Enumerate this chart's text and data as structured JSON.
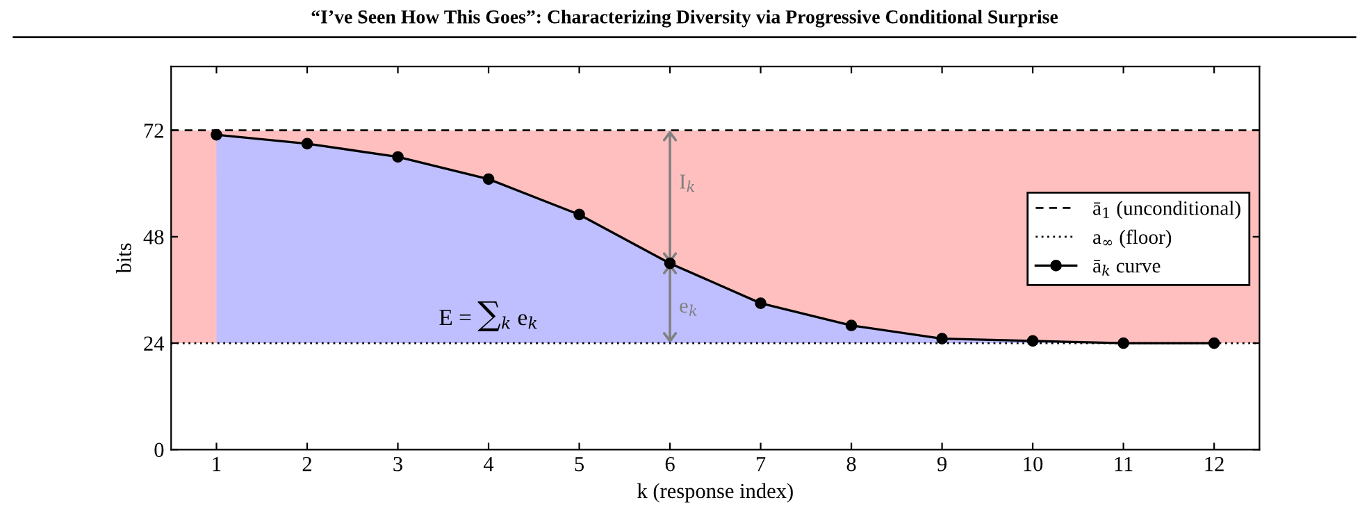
{
  "chart_data": {
    "type": "line",
    "title": "“I’ve Seen How This Goes”: Characterizing Diversity via Progressive Conditional Surprise",
    "xlabel": "k (response index)",
    "ylabel": "bits",
    "x": [
      1,
      2,
      3,
      4,
      5,
      6,
      7,
      8,
      9,
      10,
      11,
      12
    ],
    "series": [
      {
        "name": "ā$_{k}$ curve",
        "color": "#000000",
        "marker": "circle",
        "line_style": "solid",
        "values": [
          71,
          69,
          66,
          61,
          53,
          42,
          33,
          28,
          25,
          24.5,
          24,
          24
        ],
        "lower": [
          24,
          24,
          24,
          24,
          24,
          24,
          24,
          24,
          24,
          24,
          24,
          24
        ],
        "upper": [
          71,
          69,
          66,
          61,
          53,
          42,
          33,
          28,
          25,
          24.5,
          24,
          24
        ]
      }
    ],
    "ref_lines": [
      {
        "axis": "y",
        "value": 72,
        "label": "ā$_{1}$ (unconditional)",
        "color": "#000000",
        "line_style": "dashed"
      },
      {
        "axis": "y",
        "value": 24,
        "label": "a$_{∞}$ (floor)",
        "color": "#000000",
        "line_style": "dotted"
      }
    ],
    "bands": [
      {
        "axis": "y",
        "from": 24,
        "to": 72,
        "color": "#ffbfbf"
      }
    ],
    "annotations": [
      "E = ∑$_{k}$ e$_{k}$",
      "I$_{k}$",
      "e$_{k}$"
    ],
    "xlim": [
      0.5,
      12.5
    ],
    "ylim": [
      0,
      86.4
    ],
    "xticks": [
      1,
      2,
      3,
      4,
      5,
      6,
      7,
      8,
      9,
      10,
      11,
      12
    ],
    "yticks": [
      0,
      24,
      48,
      72
    ],
    "grid": false,
    "legend": "right"
  }
}
